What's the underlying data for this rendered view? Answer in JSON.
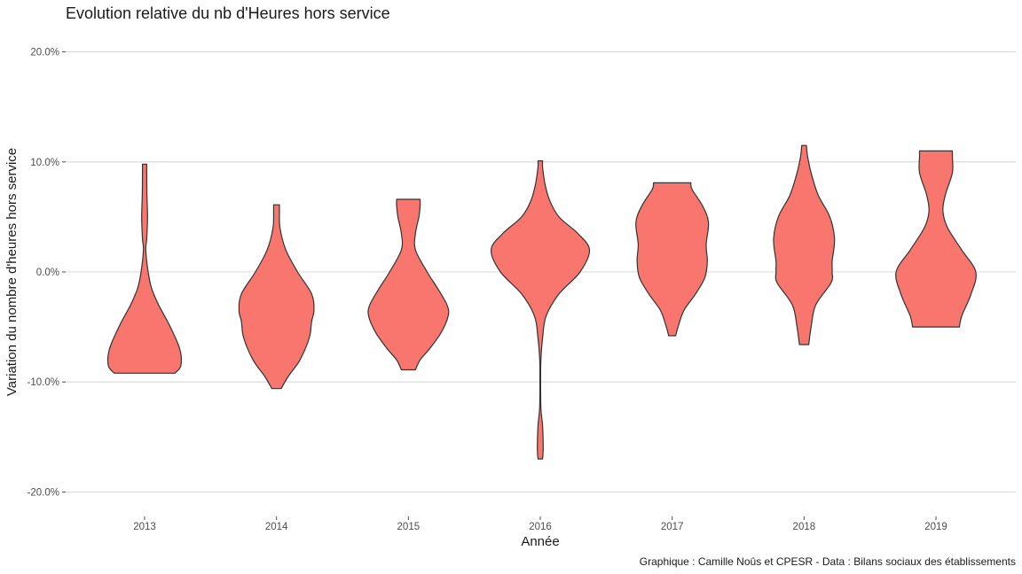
{
  "chart_data": {
    "type": "violin",
    "title": "Evolution relative du nb d'Heures hors service",
    "xlabel": "Année",
    "ylabel": "Variation du nombre d'heures hors service",
    "caption": "Graphique : Camille Noûs et CPESR - Data : Bilans sociaux des établissements",
    "ylim": [
      -0.22,
      0.22
    ],
    "yticks": [
      -0.2,
      -0.1,
      0.0,
      0.1,
      0.2
    ],
    "ytick_labels": [
      "-20.0%",
      "-10.0%",
      "0.0%",
      "10.0%",
      "20.0%"
    ],
    "categories": [
      "2013",
      "2014",
      "2015",
      "2016",
      "2017",
      "2018",
      "2019"
    ],
    "fill_color": "#F8766D",
    "outline_color": "#333333",
    "grid": true,
    "legend": "none",
    "series": [
      {
        "category": "2013",
        "min": -0.092,
        "max": 0.098,
        "profile": [
          [
            -0.092,
            0.26
          ],
          [
            -0.085,
            0.31
          ],
          [
            -0.07,
            0.3
          ],
          [
            -0.05,
            0.22
          ],
          [
            -0.03,
            0.12
          ],
          [
            -0.015,
            0.06
          ],
          [
            0.0,
            0.03
          ],
          [
            0.02,
            0.01
          ],
          [
            0.03,
            0.018
          ],
          [
            0.05,
            0.025
          ],
          [
            0.07,
            0.02
          ],
          [
            0.09,
            0.018
          ],
          [
            0.098,
            0.018
          ]
        ]
      },
      {
        "category": "2014",
        "min": -0.106,
        "max": 0.061,
        "profile": [
          [
            -0.106,
            0.04
          ],
          [
            -0.095,
            0.1
          ],
          [
            -0.08,
            0.2
          ],
          [
            -0.06,
            0.28
          ],
          [
            -0.045,
            0.3
          ],
          [
            -0.035,
            0.32
          ],
          [
            -0.02,
            0.3
          ],
          [
            0.0,
            0.18
          ],
          [
            0.02,
            0.08
          ],
          [
            0.04,
            0.03
          ],
          [
            0.055,
            0.025
          ],
          [
            0.061,
            0.025
          ]
        ]
      },
      {
        "category": "2015",
        "min": -0.089,
        "max": 0.066,
        "profile": [
          [
            -0.089,
            0.06
          ],
          [
            -0.08,
            0.1
          ],
          [
            -0.07,
            0.18
          ],
          [
            -0.055,
            0.28
          ],
          [
            -0.04,
            0.34
          ],
          [
            -0.03,
            0.33
          ],
          [
            -0.015,
            0.25
          ],
          [
            0.0,
            0.16
          ],
          [
            0.02,
            0.06
          ],
          [
            0.035,
            0.06
          ],
          [
            0.05,
            0.09
          ],
          [
            0.06,
            0.1
          ],
          [
            0.066,
            0.1
          ]
        ]
      },
      {
        "category": "2016",
        "min": -0.17,
        "max": 0.101,
        "profile": [
          [
            -0.17,
            0.02
          ],
          [
            -0.16,
            0.025
          ],
          [
            -0.14,
            0.02
          ],
          [
            -0.125,
            0.006
          ],
          [
            -0.1,
            0.003
          ],
          [
            -0.08,
            0.005
          ],
          [
            -0.06,
            0.02
          ],
          [
            -0.04,
            0.05
          ],
          [
            -0.02,
            0.16
          ],
          [
            0.0,
            0.34
          ],
          [
            0.02,
            0.42
          ],
          [
            0.035,
            0.32
          ],
          [
            0.05,
            0.16
          ],
          [
            0.065,
            0.08
          ],
          [
            0.08,
            0.04
          ],
          [
            0.095,
            0.02
          ],
          [
            0.101,
            0.02
          ]
        ]
      },
      {
        "category": "2017",
        "min": -0.058,
        "max": 0.081,
        "profile": [
          [
            -0.058,
            0.03
          ],
          [
            -0.05,
            0.05
          ],
          [
            -0.035,
            0.1
          ],
          [
            -0.02,
            0.2
          ],
          [
            -0.005,
            0.28
          ],
          [
            0.01,
            0.3
          ],
          [
            0.025,
            0.29
          ],
          [
            0.045,
            0.31
          ],
          [
            0.06,
            0.26
          ],
          [
            0.075,
            0.17
          ],
          [
            0.081,
            0.16
          ]
        ]
      },
      {
        "category": "2018",
        "min": -0.066,
        "max": 0.115,
        "profile": [
          [
            -0.066,
            0.04
          ],
          [
            -0.05,
            0.06
          ],
          [
            -0.03,
            0.1
          ],
          [
            -0.01,
            0.23
          ],
          [
            0.0,
            0.24
          ],
          [
            0.01,
            0.24
          ],
          [
            0.03,
            0.26
          ],
          [
            0.05,
            0.22
          ],
          [
            0.07,
            0.12
          ],
          [
            0.09,
            0.06
          ],
          [
            0.105,
            0.03
          ],
          [
            0.115,
            0.02
          ]
        ]
      },
      {
        "category": "2019",
        "min": -0.05,
        "max": 0.11,
        "profile": [
          [
            -0.05,
            0.2
          ],
          [
            -0.04,
            0.22
          ],
          [
            -0.02,
            0.3
          ],
          [
            0.0,
            0.34
          ],
          [
            0.02,
            0.22
          ],
          [
            0.04,
            0.1
          ],
          [
            0.055,
            0.06
          ],
          [
            0.07,
            0.08
          ],
          [
            0.09,
            0.14
          ],
          [
            0.105,
            0.14
          ],
          [
            0.11,
            0.14
          ]
        ]
      }
    ]
  }
}
